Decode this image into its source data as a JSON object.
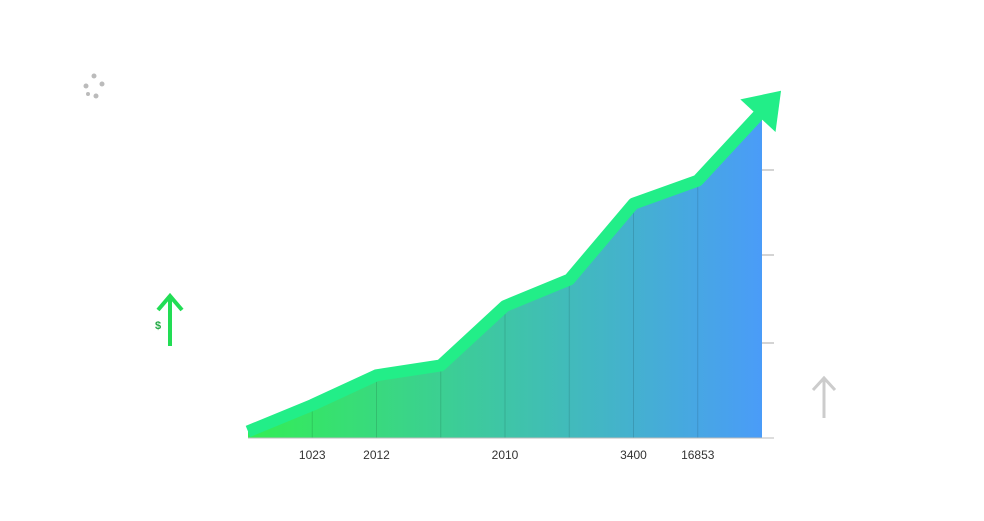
{
  "chart_data": {
    "type": "area",
    "categories": [
      null,
      "1023",
      "2012",
      null,
      "2010",
      null,
      "3400",
      "16853",
      null
    ],
    "values": [
      2,
      10,
      19,
      22,
      40,
      48,
      71,
      78,
      99
    ],
    "ylim": [
      0,
      100
    ],
    "annotation": "$",
    "colors": [
      "#33ee55",
      "#4a9cf8"
    ],
    "line_color": "#22ee88"
  }
}
